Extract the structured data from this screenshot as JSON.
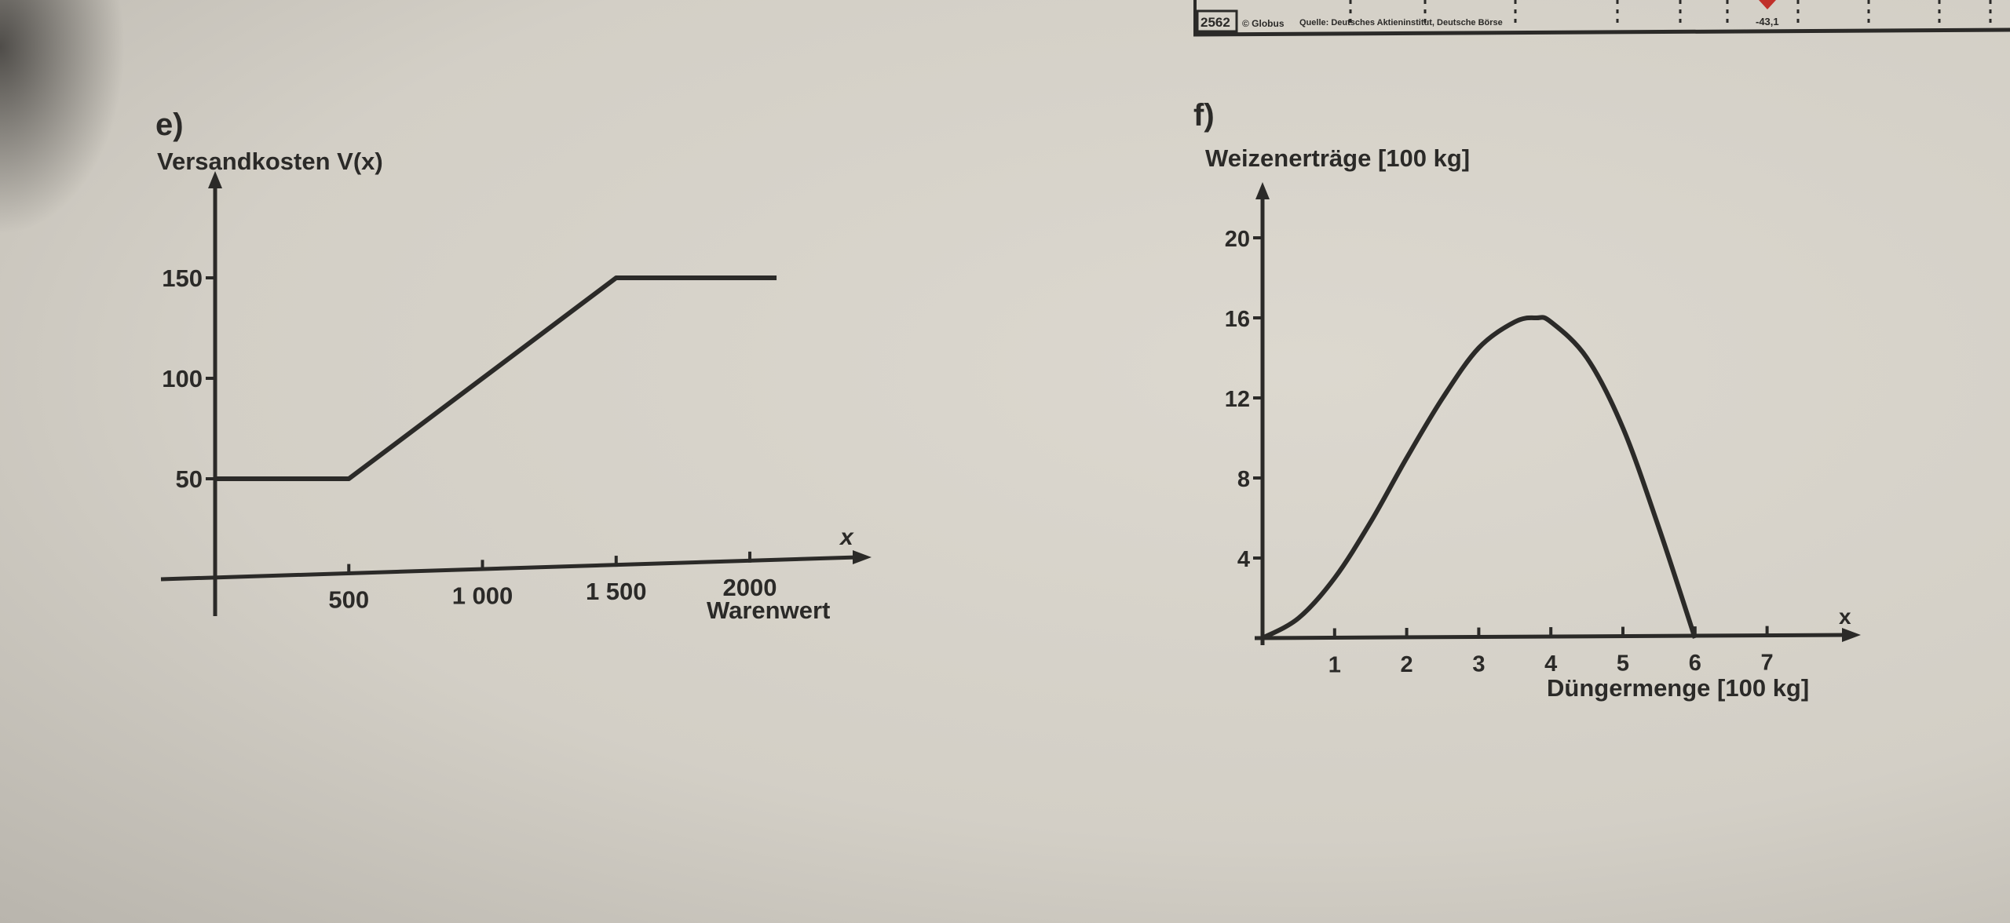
{
  "header_strip": {
    "number": "2562",
    "publisher": "© Globus",
    "source": "Quelle: Deutsches Aktieninstitut, Deutsche Börse",
    "value": "-43,1",
    "marker_color": "#c0302a"
  },
  "chart_data": [
    {
      "label": "e)",
      "type": "line",
      "ylabel": "Versandkosten V(x)",
      "xlabel": "Warenwert",
      "x_axis_symbol": "x",
      "x_ticks": [
        500,
        1000,
        1500,
        2000
      ],
      "x_tick_labels": [
        "500",
        "1 000",
        "1 500",
        "2000"
      ],
      "y_ticks": [
        50,
        100,
        150
      ],
      "y_tick_labels": [
        "50",
        "100",
        "150"
      ],
      "xlim": [
        0,
        2350
      ],
      "ylim": [
        0,
        190
      ],
      "grid": false,
      "series": [
        {
          "x": [
            0,
            500,
            1500,
            2100
          ],
          "y": [
            50,
            50,
            150,
            150
          ]
        }
      ]
    },
    {
      "label": "f)",
      "type": "line",
      "ylabel": "Weizenerträge [100 kg]",
      "xlabel": "Düngermenge [100 kg]",
      "x_axis_symbol": "x",
      "x_ticks": [
        1,
        2,
        3,
        4,
        5,
        6,
        7
      ],
      "x_tick_labels": [
        "1",
        "2",
        "3",
        "4",
        "5",
        "6",
        "7"
      ],
      "y_ticks": [
        4,
        8,
        12,
        16,
        20
      ],
      "y_tick_labels": [
        "4",
        "8",
        "12",
        "16",
        "20"
      ],
      "xlim": [
        0,
        8
      ],
      "ylim": [
        0,
        22.5
      ],
      "grid": false,
      "series": [
        {
          "x": [
            0,
            0.5,
            1,
            1.5,
            2,
            2.5,
            3,
            3.5,
            3.8,
            4,
            4.5,
            5,
            5.5,
            6
          ],
          "y": [
            0,
            1,
            3,
            5.8,
            9,
            12,
            14.5,
            15.8,
            16,
            15.8,
            14,
            10.5,
            5.5,
            0
          ]
        }
      ]
    }
  ]
}
